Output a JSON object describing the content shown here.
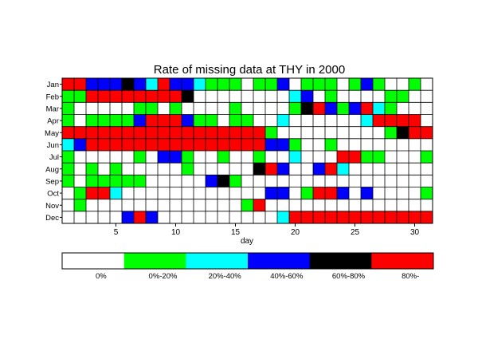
{
  "chart_data": {
    "type": "heatmap",
    "title": "Rate of missing data at THY in 2000",
    "xlabel": "day",
    "ylabel": "",
    "x": [
      1,
      2,
      3,
      4,
      5,
      6,
      7,
      8,
      9,
      10,
      11,
      12,
      13,
      14,
      15,
      16,
      17,
      18,
      19,
      20,
      21,
      22,
      23,
      24,
      25,
      26,
      27,
      28,
      29,
      30,
      31
    ],
    "xticks": [
      5,
      10,
      15,
      20,
      25,
      30
    ],
    "xlim": [
      0.5,
      31.5
    ],
    "months": [
      "Jan",
      "Feb",
      "Mar",
      "Apr",
      "May",
      "Jun",
      "Jul",
      "Aug",
      "Sep",
      "Oct",
      "Nov",
      "Dec"
    ],
    "grid": true,
    "legend_position": "bottom",
    "categories": [
      {
        "label": "0%",
        "color": "#ffffff"
      },
      {
        "label": "0%-20%",
        "color": "#00ff00"
      },
      {
        "label": "20%-40%",
        "color": "#00ffff"
      },
      {
        "label": "40%-60%",
        "color": "#0000ff"
      },
      {
        "label": "60%-80%",
        "color": "#000000"
      },
      {
        "label": "80%-",
        "color": "#ff0000"
      }
    ],
    "values": [
      [
        5,
        5,
        3,
        3,
        3,
        4,
        3,
        2,
        5,
        3,
        3,
        2,
        1,
        1,
        1,
        0,
        1,
        1,
        3,
        0,
        1,
        1,
        1,
        0,
        1,
        3,
        1,
        0,
        0,
        1,
        0
      ],
      [
        1,
        1,
        5,
        5,
        5,
        5,
        5,
        5,
        5,
        5,
        4,
        0,
        0,
        0,
        0,
        0,
        0,
        0,
        0,
        2,
        3,
        0,
        1,
        0,
        0,
        0,
        0,
        1,
        1,
        0,
        0
      ],
      [
        1,
        0,
        0,
        0,
        0,
        0,
        1,
        1,
        0,
        1,
        0,
        0,
        0,
        0,
        1,
        0,
        0,
        0,
        0,
        1,
        4,
        5,
        3,
        1,
        3,
        5,
        2,
        1,
        0,
        0,
        0
      ],
      [
        1,
        0,
        1,
        1,
        1,
        1,
        3,
        5,
        5,
        5,
        3,
        1,
        1,
        0,
        1,
        1,
        0,
        0,
        2,
        0,
        0,
        0,
        0,
        0,
        0,
        2,
        5,
        5,
        5,
        5,
        0
      ],
      [
        5,
        5,
        5,
        5,
        5,
        5,
        5,
        5,
        5,
        5,
        5,
        5,
        5,
        5,
        5,
        5,
        5,
        1,
        0,
        0,
        0,
        0,
        0,
        0,
        0,
        0,
        0,
        1,
        4,
        5,
        5
      ],
      [
        2,
        3,
        5,
        5,
        5,
        5,
        5,
        5,
        5,
        5,
        5,
        5,
        5,
        5,
        5,
        5,
        5,
        3,
        3,
        1,
        0,
        0,
        1,
        0,
        0,
        0,
        0,
        0,
        0,
        0,
        0
      ],
      [
        1,
        0,
        0,
        0,
        0,
        0,
        1,
        0,
        3,
        3,
        1,
        0,
        0,
        1,
        0,
        0,
        1,
        0,
        0,
        2,
        0,
        0,
        0,
        5,
        5,
        1,
        1,
        0,
        0,
        0,
        1
      ],
      [
        1,
        0,
        1,
        0,
        1,
        0,
        0,
        0,
        0,
        0,
        1,
        0,
        0,
        0,
        0,
        0,
        4,
        5,
        3,
        0,
        0,
        3,
        5,
        2,
        0,
        0,
        0,
        0,
        0,
        0,
        0
      ],
      [
        1,
        0,
        1,
        1,
        1,
        1,
        1,
        0,
        0,
        0,
        0,
        0,
        3,
        4,
        1,
        0,
        0,
        0,
        0,
        0,
        0,
        0,
        0,
        0,
        0,
        0,
        0,
        0,
        0,
        0,
        0
      ],
      [
        0,
        1,
        5,
        5,
        2,
        0,
        0,
        0,
        0,
        0,
        0,
        0,
        0,
        0,
        0,
        0,
        0,
        3,
        3,
        0,
        1,
        5,
        5,
        3,
        0,
        3,
        0,
        0,
        0,
        0,
        1
      ],
      [
        0,
        1,
        0,
        0,
        0,
        0,
        0,
        0,
        0,
        0,
        0,
        0,
        0,
        0,
        0,
        1,
        5,
        0,
        0,
        0,
        0,
        0,
        0,
        0,
        0,
        0,
        0,
        0,
        0,
        0,
        0
      ],
      [
        0,
        0,
        0,
        0,
        0,
        3,
        5,
        3,
        0,
        0,
        0,
        0,
        0,
        0,
        0,
        0,
        0,
        0,
        2,
        5,
        5,
        5,
        5,
        5,
        5,
        5,
        5,
        5,
        5,
        5,
        5
      ]
    ]
  }
}
